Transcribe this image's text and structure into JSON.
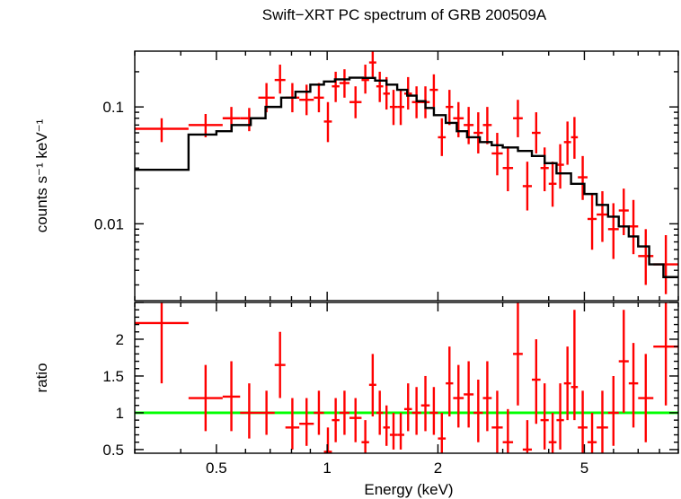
{
  "chart_data": [
    {
      "type": "scatter",
      "title": "Swift−XRT PC spectrum of GRB 200509A",
      "xlabel": "",
      "ylabel": "counts s⁻¹ keV⁻¹",
      "xscale": "log",
      "yscale": "log",
      "xlim": [
        0.3,
        9.0
      ],
      "ylim": [
        0.0022,
        0.3
      ],
      "yticks": [
        {
          "value": 0.1,
          "label": "0.1"
        },
        {
          "value": 0.01,
          "label": "0.01"
        }
      ],
      "grid": false,
      "series": [
        {
          "kind": "data",
          "color": "#ff0000",
          "points": [
            [
              0.3,
              0.42,
              0.065,
              0.08,
              0.05
            ],
            [
              0.42,
              0.52,
              0.07,
              0.087,
              0.055
            ],
            [
              0.52,
              0.58,
              0.08,
              0.1,
              0.063
            ],
            [
              0.58,
              0.65,
              0.08,
              0.098,
              0.062
            ],
            [
              0.65,
              0.72,
              0.12,
              0.16,
              0.09
            ],
            [
              0.72,
              0.77,
              0.17,
              0.23,
              0.13
            ],
            [
              0.77,
              0.84,
              0.12,
              0.16,
              0.09
            ],
            [
              0.84,
              0.92,
              0.115,
              0.155,
              0.085
            ],
            [
              0.92,
              0.98,
              0.12,
              0.16,
              0.09
            ],
            [
              0.98,
              1.03,
              0.075,
              0.11,
              0.05
            ],
            [
              1.03,
              1.08,
              0.15,
              0.2,
              0.11
            ],
            [
              1.08,
              1.15,
              0.16,
              0.21,
              0.12
            ],
            [
              1.15,
              1.24,
              0.11,
              0.15,
              0.08
            ],
            [
              1.24,
              1.3,
              0.17,
              0.23,
              0.13
            ],
            [
              1.3,
              1.36,
              0.24,
              0.32,
              0.18
            ],
            [
              1.36,
              1.42,
              0.15,
              0.2,
              0.11
            ],
            [
              1.42,
              1.48,
              0.13,
              0.18,
              0.095
            ],
            [
              1.48,
              1.55,
              0.1,
              0.14,
              0.07
            ],
            [
              1.55,
              1.62,
              0.1,
              0.14,
              0.07
            ],
            [
              1.62,
              1.7,
              0.13,
              0.18,
              0.095
            ],
            [
              1.7,
              1.8,
              0.11,
              0.15,
              0.08
            ],
            [
              1.8,
              1.9,
              0.11,
              0.15,
              0.08
            ],
            [
              1.9,
              2.0,
              0.14,
              0.19,
              0.1
            ],
            [
              2.0,
              2.1,
              0.055,
              0.08,
              0.038
            ],
            [
              2.1,
              2.2,
              0.1,
              0.14,
              0.07
            ],
            [
              2.2,
              2.35,
              0.08,
              0.11,
              0.055
            ],
            [
              2.35,
              2.5,
              0.07,
              0.1,
              0.048
            ],
            [
              2.5,
              2.65,
              0.06,
              0.09,
              0.04
            ],
            [
              2.65,
              2.8,
              0.07,
              0.1,
              0.048
            ],
            [
              2.8,
              3.0,
              0.04,
              0.06,
              0.026
            ],
            [
              3.0,
              3.2,
              0.03,
              0.046,
              0.019
            ],
            [
              3.2,
              3.4,
              0.08,
              0.115,
              0.055
            ],
            [
              3.4,
              3.6,
              0.021,
              0.034,
              0.013
            ],
            [
              3.6,
              3.8,
              0.06,
              0.09,
              0.04
            ],
            [
              3.8,
              4.0,
              0.03,
              0.045,
              0.019
            ],
            [
              4.0,
              4.2,
              0.022,
              0.034,
              0.014
            ],
            [
              4.2,
              4.4,
              0.032,
              0.048,
              0.02
            ],
            [
              4.4,
              4.6,
              0.05,
              0.075,
              0.032
            ],
            [
              4.6,
              4.8,
              0.055,
              0.082,
              0.036
            ],
            [
              4.8,
              5.1,
              0.025,
              0.038,
              0.016
            ],
            [
              5.1,
              5.4,
              0.011,
              0.018,
              0.006
            ],
            [
              5.4,
              5.8,
              0.012,
              0.019,
              0.007
            ],
            [
              5.8,
              6.2,
              0.009,
              0.015,
              0.005
            ],
            [
              6.2,
              6.6,
              0.013,
              0.02,
              0.008
            ],
            [
              6.6,
              7.0,
              0.0095,
              0.016,
              0.0055
            ],
            [
              7.0,
              7.7,
              0.0053,
              0.009,
              0.003
            ],
            [
              7.7,
              9.0,
              0.0045,
              0.008,
              0.0025
            ]
          ]
        },
        {
          "kind": "model",
          "color": "#000000",
          "steps": [
            [
              0.3,
              0.029
            ],
            [
              0.42,
              0.058
            ],
            [
              0.5,
              0.062
            ],
            [
              0.55,
              0.07
            ],
            [
              0.62,
              0.08
            ],
            [
              0.68,
              0.1
            ],
            [
              0.75,
              0.12
            ],
            [
              0.82,
              0.135
            ],
            [
              0.9,
              0.155
            ],
            [
              0.98,
              0.165
            ],
            [
              1.05,
              0.172
            ],
            [
              1.15,
              0.178
            ],
            [
              1.25,
              0.177
            ],
            [
              1.35,
              0.168
            ],
            [
              1.45,
              0.155
            ],
            [
              1.55,
              0.14
            ],
            [
              1.65,
              0.125
            ],
            [
              1.75,
              0.112
            ],
            [
              1.85,
              0.098
            ],
            [
              1.95,
              0.085
            ],
            [
              2.1,
              0.073
            ],
            [
              2.25,
              0.062
            ],
            [
              2.4,
              0.055
            ],
            [
              2.6,
              0.05
            ],
            [
              2.8,
              0.047
            ],
            [
              3.0,
              0.045
            ],
            [
              3.3,
              0.042
            ],
            [
              3.6,
              0.038
            ],
            [
              3.9,
              0.033
            ],
            [
              4.2,
              0.027
            ],
            [
              4.6,
              0.022
            ],
            [
              5.0,
              0.018
            ],
            [
              5.4,
              0.0145
            ],
            [
              5.8,
              0.0115
            ],
            [
              6.2,
              0.0095
            ],
            [
              6.6,
              0.0078
            ],
            [
              7.0,
              0.0064
            ],
            [
              7.5,
              0.0045
            ],
            [
              8.2,
              0.0035
            ],
            [
              9.0,
              0.0035
            ]
          ]
        }
      ]
    },
    {
      "type": "scatter",
      "title": "",
      "xlabel": "Energy (keV)",
      "ylabel": "ratio",
      "xscale": "log",
      "yscale": "linear",
      "xlim": [
        0.3,
        9.0
      ],
      "ylim": [
        0.45,
        2.5
      ],
      "xticks": [
        {
          "value": 0.5,
          "label": "0.5"
        },
        {
          "value": 1,
          "label": "1"
        },
        {
          "value": 2,
          "label": "2"
        },
        {
          "value": 5,
          "label": "5"
        }
      ],
      "yticks": [
        {
          "value": 0.5,
          "label": "0.5"
        },
        {
          "value": 1,
          "label": "1"
        },
        {
          "value": 1.5,
          "label": "1.5"
        },
        {
          "value": 2,
          "label": "2"
        }
      ],
      "grid": false,
      "reference_line": {
        "y": 1,
        "color": "#00ff00"
      },
      "series": [
        {
          "kind": "ratio",
          "color": "#ff0000",
          "points": [
            [
              0.3,
              0.42,
              2.22,
              2.7,
              1.4
            ],
            [
              0.42,
              0.52,
              1.2,
              1.65,
              0.75
            ],
            [
              0.52,
              0.58,
              1.22,
              1.7,
              0.75
            ],
            [
              0.58,
              0.65,
              1.0,
              1.4,
              0.65
            ],
            [
              0.65,
              0.72,
              1.0,
              1.3,
              0.7
            ],
            [
              0.72,
              0.77,
              1.65,
              2.1,
              1.2
            ],
            [
              0.77,
              0.84,
              0.8,
              1.2,
              0.5
            ],
            [
              0.84,
              0.92,
              0.85,
              1.2,
              0.55
            ],
            [
              0.92,
              0.98,
              1.0,
              1.3,
              0.7
            ],
            [
              0.98,
              1.03,
              0.47,
              0.8,
              0.45
            ],
            [
              1.03,
              1.08,
              0.9,
              1.2,
              0.6
            ],
            [
              1.08,
              1.15,
              1.0,
              1.3,
              0.7
            ],
            [
              1.15,
              1.24,
              0.93,
              1.2,
              0.6
            ],
            [
              1.24,
              1.3,
              0.6,
              0.9,
              0.45
            ],
            [
              1.3,
              1.36,
              1.38,
              1.8,
              0.95
            ],
            [
              1.36,
              1.42,
              1.0,
              1.3,
              0.7
            ],
            [
              1.42,
              1.48,
              0.8,
              1.1,
              0.55
            ],
            [
              1.48,
              1.55,
              0.7,
              1.0,
              0.5
            ],
            [
              1.55,
              1.62,
              0.7,
              1.0,
              0.5
            ],
            [
              1.62,
              1.7,
              1.05,
              1.4,
              0.75
            ],
            [
              1.7,
              1.8,
              1.0,
              1.35,
              0.7
            ],
            [
              1.8,
              1.9,
              1.1,
              1.5,
              0.75
            ],
            [
              1.9,
              2.0,
              1.0,
              1.35,
              0.7
            ],
            [
              2.0,
              2.1,
              0.65,
              1.0,
              0.45
            ],
            [
              2.1,
              2.2,
              1.4,
              1.9,
              0.95
            ],
            [
              2.2,
              2.35,
              1.2,
              1.65,
              0.8
            ],
            [
              2.35,
              2.5,
              1.25,
              1.7,
              0.8
            ],
            [
              2.5,
              2.65,
              1.0,
              1.45,
              0.6
            ],
            [
              2.65,
              2.8,
              1.2,
              1.7,
              0.75
            ],
            [
              2.8,
              3.0,
              0.8,
              1.3,
              0.45
            ],
            [
              3.0,
              3.2,
              0.6,
              1.05,
              0.45
            ],
            [
              3.2,
              3.4,
              1.8,
              2.6,
              1.1
            ],
            [
              3.4,
              3.6,
              0.5,
              0.9,
              0.45
            ],
            [
              3.6,
              3.8,
              1.45,
              2.0,
              0.85
            ],
            [
              3.8,
              4.0,
              0.9,
              1.4,
              0.5
            ],
            [
              4.0,
              4.2,
              0.6,
              1.0,
              0.45
            ],
            [
              4.2,
              4.4,
              0.9,
              1.4,
              0.5
            ],
            [
              4.4,
              4.6,
              1.4,
              1.9,
              0.9
            ],
            [
              4.6,
              4.8,
              1.35,
              2.4,
              0.9
            ],
            [
              4.8,
              5.1,
              0.8,
              1.3,
              0.45
            ],
            [
              5.1,
              5.4,
              0.6,
              1.0,
              0.45
            ],
            [
              5.4,
              5.8,
              0.8,
              1.3,
              0.45
            ],
            [
              5.8,
              6.2,
              1.0,
              1.5,
              0.55
            ],
            [
              6.2,
              6.6,
              1.7,
              2.4,
              1.0
            ],
            [
              6.6,
              7.0,
              1.4,
              1.95,
              0.8
            ],
            [
              7.0,
              7.7,
              1.2,
              1.8,
              0.6
            ],
            [
              7.7,
              9.0,
              1.9,
              2.6,
              1.1
            ]
          ]
        }
      ]
    }
  ]
}
